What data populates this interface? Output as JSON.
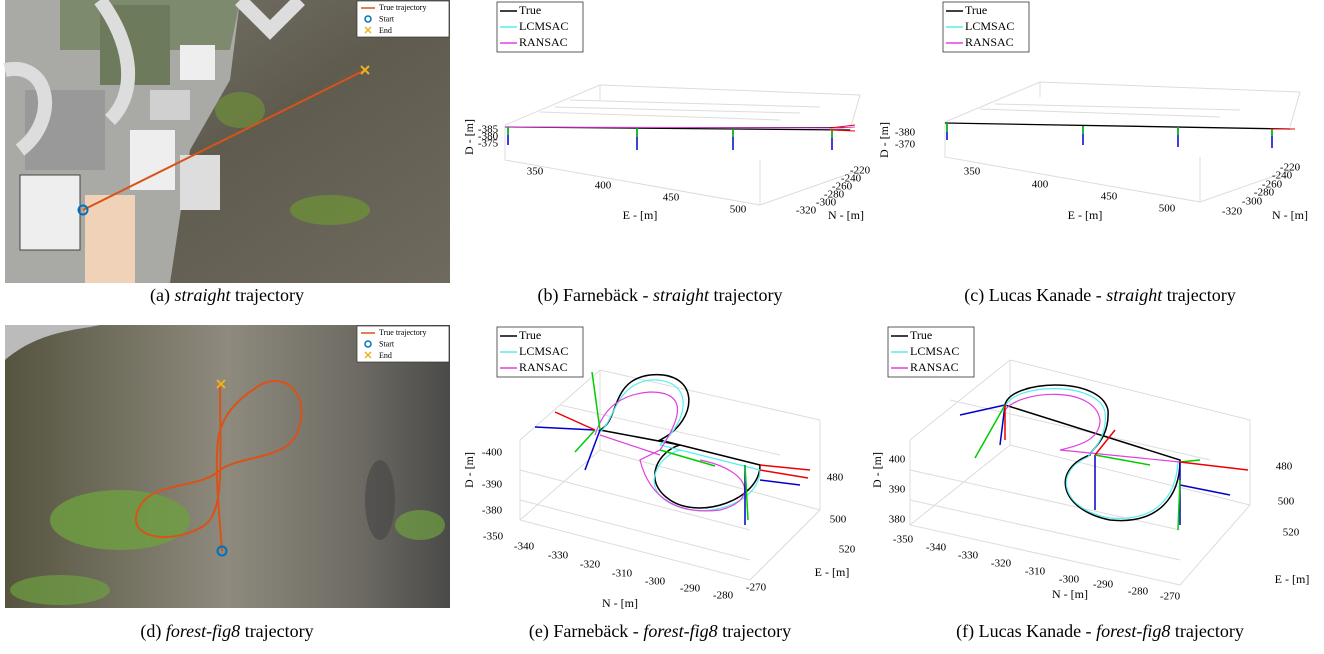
{
  "panels": [
    {
      "caption": {
        "label": "(a)",
        "emph": "straight",
        "suffix": "trajectory"
      },
      "legend": [
        "True trajectory",
        "Start",
        "End"
      ]
    },
    {
      "caption": {
        "label": "(b)",
        "prefix": "Farnebäck -",
        "emph": "straight",
        "suffix": "trajectory"
      },
      "legend": [
        "True",
        "LCMSAC",
        "RANSAC"
      ],
      "axes": {
        "d": {
          "label": "D - [m]",
          "ticks": [
            -385,
            -380,
            -375
          ]
        },
        "e": {
          "label": "E - [m]",
          "ticks": [
            350,
            400,
            450,
            500
          ]
        },
        "n": {
          "label": "N - [m]",
          "ticks": [
            -220,
            -240,
            -260,
            -280,
            -300,
            -320
          ]
        }
      }
    },
    {
      "caption": {
        "label": "(c)",
        "prefix": "Lucas Kanade -",
        "emph": "straight",
        "suffix": "trajectory"
      },
      "legend": [
        "True",
        "LCMSAC",
        "RANSAC"
      ],
      "axes": {
        "d": {
          "label": "D - [m]",
          "ticks": [
            -380,
            -370
          ]
        },
        "e": {
          "label": "E - [m]",
          "ticks": [
            350,
            400,
            450,
            500
          ]
        },
        "n": {
          "label": "N - [m]",
          "ticks": [
            -220,
            -240,
            -260,
            -280,
            -300,
            -320
          ]
        }
      }
    },
    {
      "caption": {
        "label": "(d)",
        "emph": "forest-fig8",
        "suffix": "trajectory"
      },
      "legend": [
        "True trajectory",
        "Start",
        "End"
      ]
    },
    {
      "caption": {
        "label": "(e)",
        "prefix": "Farnebäck -",
        "emph": "forest-fig8",
        "suffix": "trajectory"
      },
      "legend": [
        "True",
        "LCMSAC",
        "RANSAC"
      ],
      "axes": {
        "d": {
          "label": "D - [m]",
          "ticks": [
            -400,
            -390,
            -380
          ]
        },
        "e": {
          "label": "E - [m]",
          "ticks": [
            480,
            500,
            520
          ]
        },
        "n": {
          "label": "N - [m]",
          "ticks": [
            -350,
            -340,
            -330,
            -320,
            -310,
            -300,
            -290,
            -280,
            -270
          ]
        }
      }
    },
    {
      "caption": {
        "label": "(f)",
        "prefix": "Lucas Kanade -",
        "emph": "forest-fig8",
        "suffix": "trajectory"
      },
      "legend": [
        "True",
        "LCMSAC",
        "RANSAC"
      ],
      "axes": {
        "d": {
          "label": "D - [m]",
          "ticks": [
            400,
            390,
            380
          ]
        },
        "e": {
          "label": "E - [m]",
          "ticks": [
            480,
            500,
            520
          ]
        },
        "n": {
          "label": "N - [m]",
          "ticks": [
            -350,
            -340,
            -330,
            -320,
            -310,
            -300,
            -290,
            -280,
            -270
          ]
        }
      }
    }
  ]
}
